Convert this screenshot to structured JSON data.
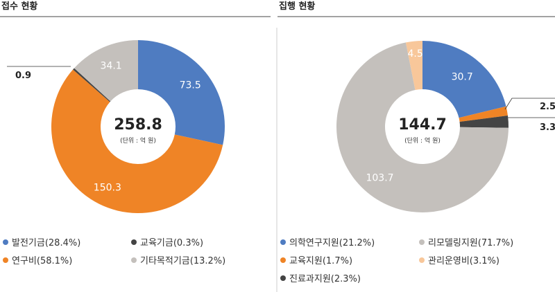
{
  "chart_data": [
    {
      "type": "pie",
      "title": "접수 현황",
      "center_value": "258.8",
      "center_unit": "(단위 : 억 원)",
      "slices": [
        {
          "label": "발전기금",
          "legend": "발전기금(28.4%)",
          "value": 73.5,
          "value_label": "73.5",
          "color": "#4f7cc1"
        },
        {
          "label": "연구비",
          "legend": "연구비(58.1%)",
          "value": 150.3,
          "value_label": "150.3",
          "color": "#ef8426"
        },
        {
          "label": "교육기금",
          "legend": "교육기금(0.3%)",
          "value": 0.9,
          "value_label": "0.9",
          "color": "#444444"
        },
        {
          "label": "기타목적기금",
          "legend": "기타목적기금(13.2%)",
          "value": 34.1,
          "value_label": "34.1",
          "color": "#c4c0bc"
        }
      ]
    },
    {
      "type": "pie",
      "title": "집행 현황",
      "center_value": "144.7",
      "center_unit": "(단위 : 억 원)",
      "slices": [
        {
          "label": "의학연구지원",
          "legend": "의학연구지원(21.2%)",
          "value": 30.7,
          "value_label": "30.7",
          "color": "#4f7cc1"
        },
        {
          "label": "교육지원",
          "legend": "교육지원(1.7%)",
          "value": 2.5,
          "value_label": "2.5",
          "color": "#ef8426"
        },
        {
          "label": "진료과지원",
          "legend": "진료과지원(2.3%)",
          "value": 3.3,
          "value_label": "3.3",
          "color": "#444444"
        },
        {
          "label": "리모델링지원",
          "legend": "리모델링지원(71.7%)",
          "value": 103.7,
          "value_label": "103.7",
          "color": "#c4c0bc"
        },
        {
          "label": "관리운영비",
          "legend": "관리운영비(3.1%)",
          "value": 4.5,
          "value_label": "4.5",
          "color": "#f8c79a"
        }
      ]
    }
  ]
}
